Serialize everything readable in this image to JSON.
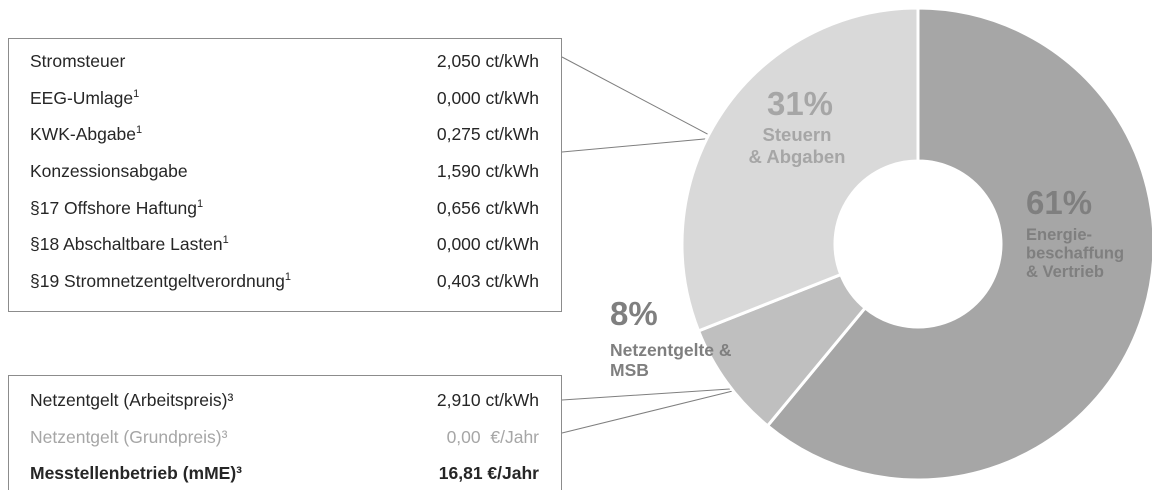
{
  "chart_data": {
    "type": "pie",
    "variant": "donut",
    "slices": [
      {
        "key": "energie",
        "value": 61,
        "pct_label": "61%",
        "label_lines": [
          "Energie-",
          "beschaffung",
          "& Vertrieb"
        ],
        "color": "#a6a6a6",
        "label_color": "#7f7f7f",
        "pct_color": "#7f7f7f"
      },
      {
        "key": "netz",
        "value": 8,
        "pct_label": "8%",
        "label_lines": [
          "Netzentgelte &",
          "MSB"
        ],
        "color": "#bfbfbf",
        "label_color": "#7f7f7f",
        "pct_color": "#7f7f7f"
      },
      {
        "key": "steuern",
        "value": 31,
        "pct_label": "31%",
        "label_lines": [
          "Steuern",
          "& Abgaben"
        ],
        "color": "#d9d9d9",
        "label_color": "#a6a6a6",
        "pct_color": "#a6a6a6"
      }
    ]
  },
  "tax_table": {
    "rows": [
      {
        "label": "Stromsteuer",
        "sup": "",
        "value": "2,050 ct/kWh"
      },
      {
        "label": "EEG-Umlage",
        "sup": "1",
        "value": "0,000 ct/kWh"
      },
      {
        "label": "KWK-Abgabe",
        "sup": "1",
        "value": "0,275 ct/kWh"
      },
      {
        "label": "Konzessionsabgabe",
        "sup": "",
        "value": "1,590 ct/kWh"
      },
      {
        "label": "§17 Offshore Haftung",
        "sup": "1",
        "value": "0,656 ct/kWh"
      },
      {
        "label": "§18 Abschaltbare Lasten",
        "sup": "1",
        "value": "0,000 ct/kWh"
      },
      {
        "label": "§19 Stromnetzentgeltverordnung",
        "sup": "1",
        "value": "0,403 ct/kWh"
      }
    ]
  },
  "grid_table": {
    "rows": [
      {
        "label": "Netzentgelt (Arbeitspreis)³",
        "value": "2,910 ct/kWh",
        "style": "normal"
      },
      {
        "label": "Netzentgelt (Grundpreis)³",
        "value": "0,00  €/Jahr",
        "style": "muted"
      },
      {
        "label": "Messtellenbetrieb (mME)³",
        "value": "16,81 €/Jahr",
        "style": "strong"
      }
    ]
  }
}
